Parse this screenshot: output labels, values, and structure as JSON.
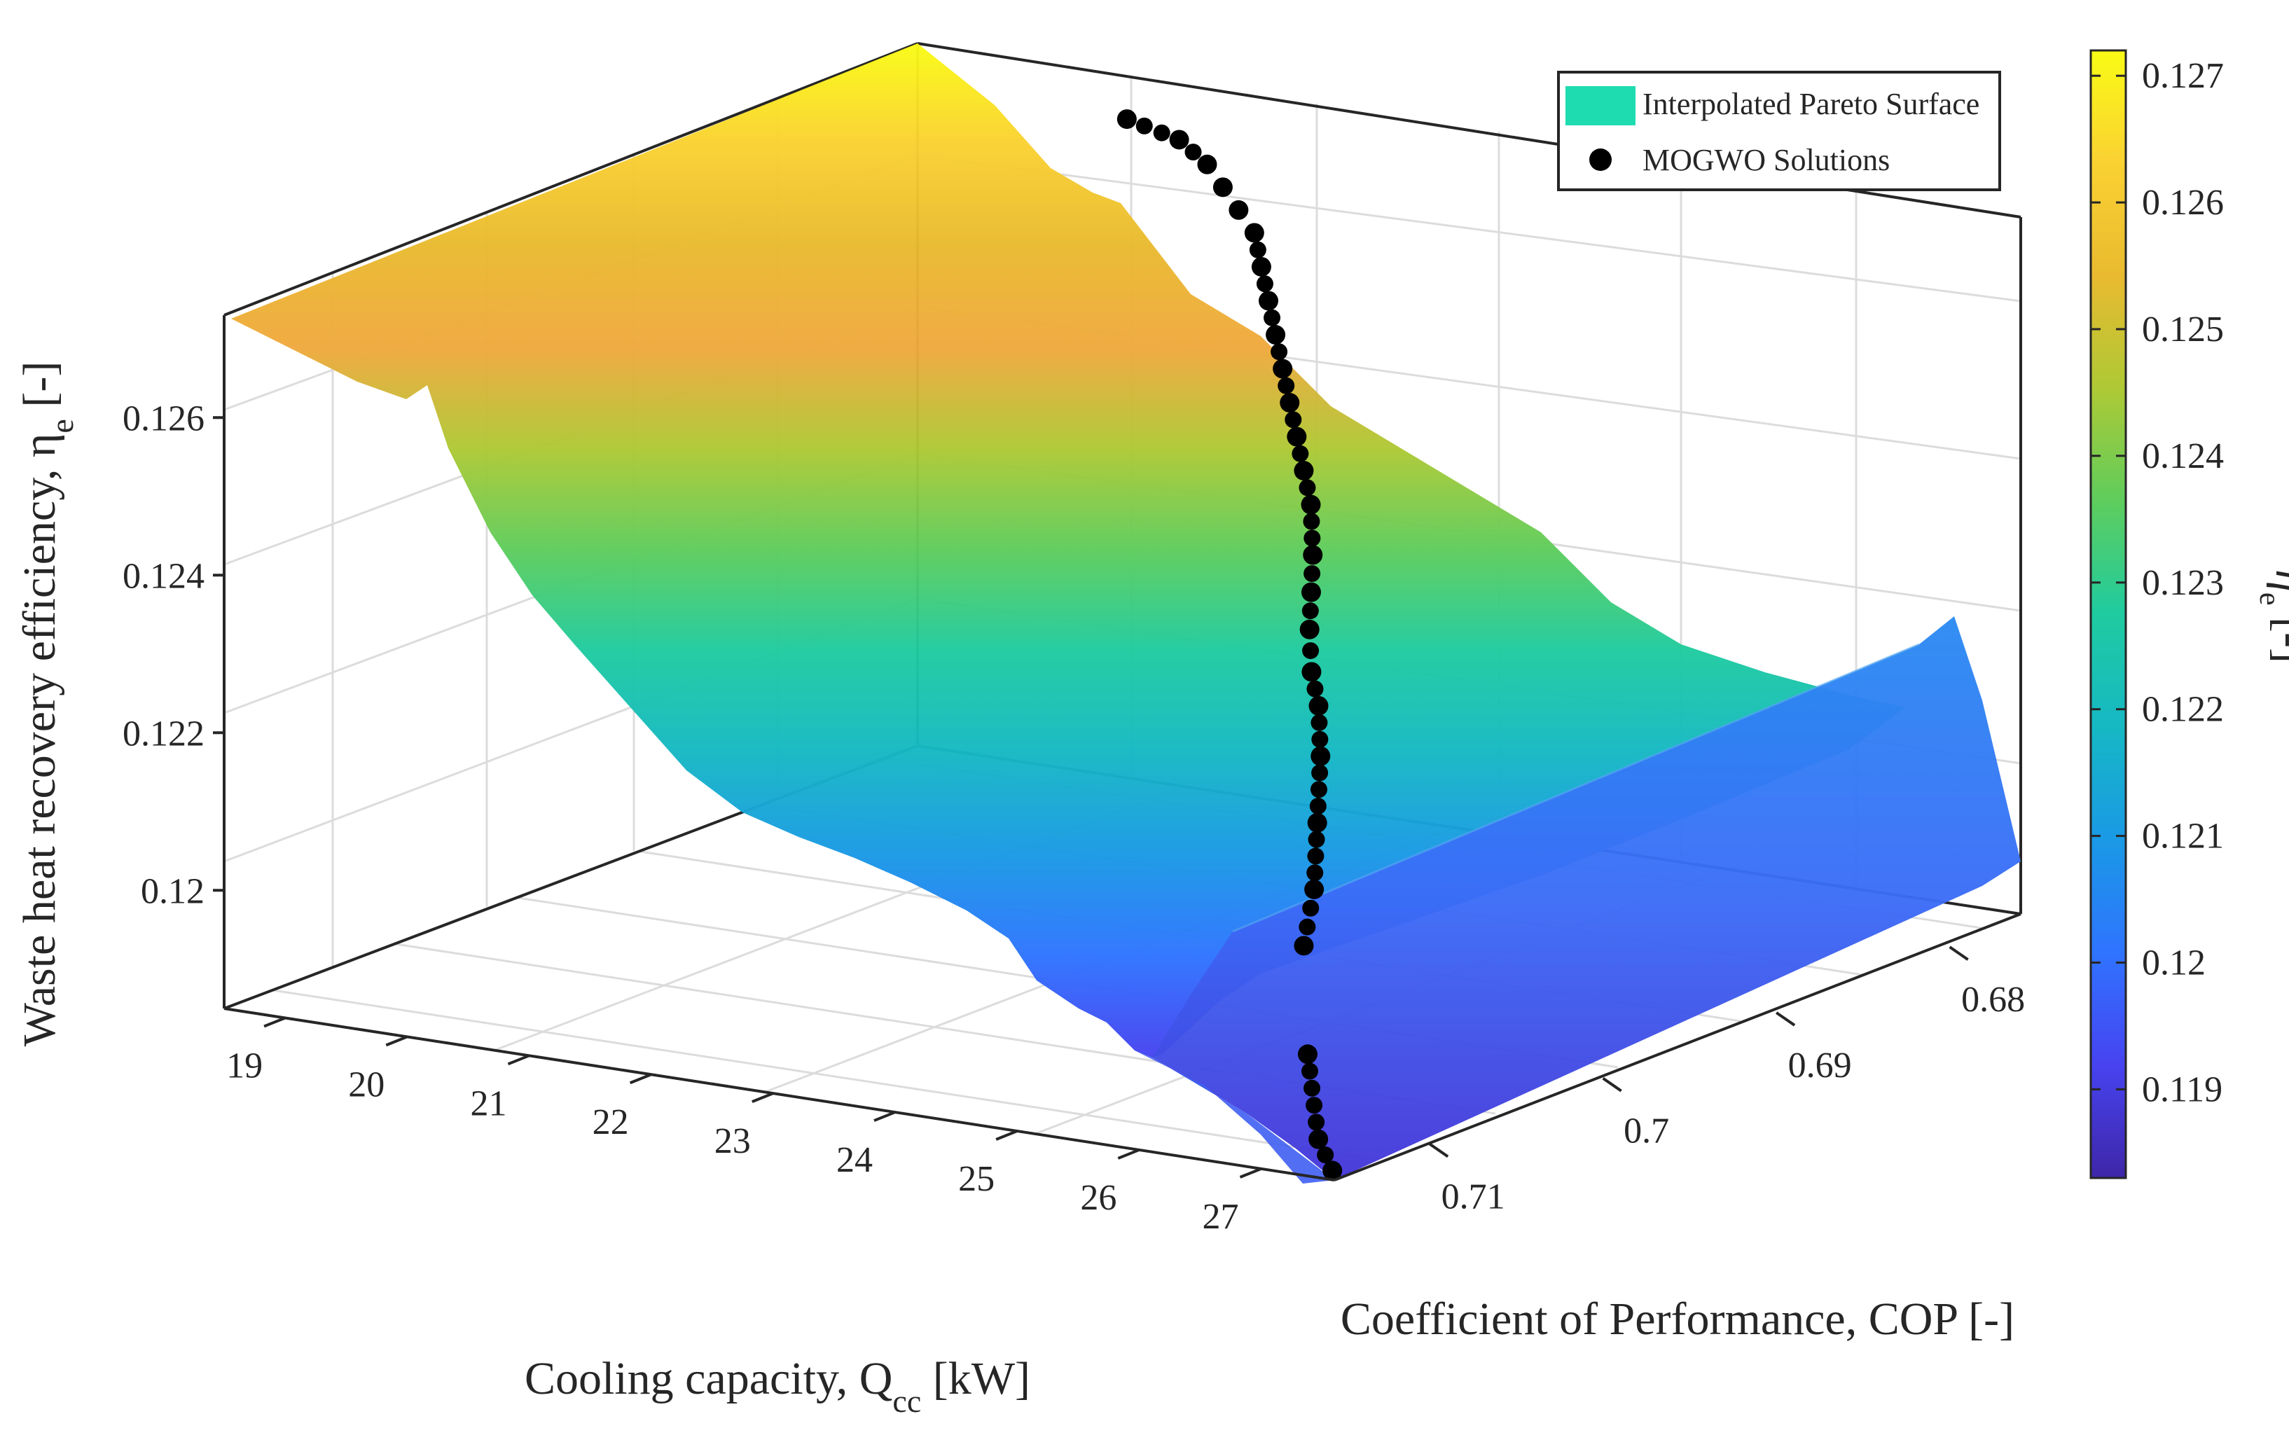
{
  "chart_data": {
    "type": "surface3d",
    "title": "",
    "xlabel": "Cooling capacity, Q",
    "xlabel_sub": "cc",
    "xlabel_unit": " [kW]",
    "ylabel": "Coefficient of Performance, COP [-]",
    "zlabel": "Waste heat recovery efficiency, η",
    "zlabel_sub": "e",
    "zlabel_unit": " [-]",
    "x_ticks": [
      "19",
      "20",
      "21",
      "22",
      "23",
      "24",
      "25",
      "26",
      "27"
    ],
    "y_ticks": [
      "0.71",
      "0.7",
      "0.69",
      "0.68"
    ],
    "z_ticks": [
      "0.12",
      "0.122",
      "0.124",
      "0.126"
    ],
    "x_range": [
      18.5,
      27.6
    ],
    "y_range": [
      0.7155,
      0.6755
    ],
    "z_range": [
      0.1185,
      0.1273
    ],
    "grid": true,
    "legend": {
      "location": "top-right",
      "entries": [
        {
          "label": "Interpolated Pareto Surface",
          "marker": "patch",
          "color": "#1edcb0"
        },
        {
          "label": "MOGWO Solutions",
          "marker": "dot",
          "color": "#000000"
        }
      ]
    },
    "colorbar": {
      "label": "η",
      "label_sub": "e",
      "label_unit": " [-]",
      "ticks": [
        "0.119",
        "0.12",
        "0.121",
        "0.122",
        "0.123",
        "0.124",
        "0.125",
        "0.126",
        "0.127"
      ],
      "range": [
        0.1183,
        0.1272
      ],
      "colormap": [
        "#3e26a8",
        "#4743f0",
        "#2f74ff",
        "#1a99e5",
        "#16b8c4",
        "#1fcba0",
        "#5ecd5d",
        "#aec935",
        "#e9ba30",
        "#fad132",
        "#f9fb15"
      ]
    },
    "series": [
      {
        "name": "MOGWO Solutions",
        "type": "scatter3d",
        "points": [
          {
            "x": 27.2,
            "y": 0.7128,
            "z": 0.1183
          },
          {
            "x": 27.0,
            "y": 0.7122,
            "z": 0.1186
          },
          {
            "x": 26.6,
            "y": 0.71,
            "z": 0.1194
          },
          {
            "x": 26.0,
            "y": 0.706,
            "z": 0.1203
          },
          {
            "x": 25.8,
            "y": 0.704,
            "z": 0.1208
          },
          {
            "x": 25.4,
            "y": 0.701,
            "z": 0.1213
          },
          {
            "x": 25.0,
            "y": 0.698,
            "z": 0.1218
          },
          {
            "x": 24.7,
            "y": 0.696,
            "z": 0.1222
          },
          {
            "x": 24.5,
            "y": 0.695,
            "z": 0.1225
          },
          {
            "x": 24.2,
            "y": 0.693,
            "z": 0.1228
          },
          {
            "x": 24.0,
            "y": 0.6915,
            "z": 0.1231
          },
          {
            "x": 23.8,
            "y": 0.69,
            "z": 0.1234
          },
          {
            "x": 23.5,
            "y": 0.688,
            "z": 0.1238
          },
          {
            "x": 23.3,
            "y": 0.687,
            "z": 0.1241
          },
          {
            "x": 23.1,
            "y": 0.686,
            "z": 0.1244
          },
          {
            "x": 22.9,
            "y": 0.685,
            "z": 0.1247
          },
          {
            "x": 22.7,
            "y": 0.684,
            "z": 0.125
          },
          {
            "x": 22.5,
            "y": 0.683,
            "z": 0.1253
          },
          {
            "x": 22.3,
            "y": 0.682,
            "z": 0.1256
          },
          {
            "x": 22.1,
            "y": 0.681,
            "z": 0.1259
          },
          {
            "x": 21.9,
            "y": 0.68,
            "z": 0.1262
          },
          {
            "x": 21.7,
            "y": 0.6795,
            "z": 0.1264
          },
          {
            "x": 21.5,
            "y": 0.679,
            "z": 0.1266
          },
          {
            "x": 21.3,
            "y": 0.6785,
            "z": 0.1268
          },
          {
            "x": 21.0,
            "y": 0.678,
            "z": 0.127
          },
          {
            "x": 20.5,
            "y": 0.6775,
            "z": 0.1271
          }
        ]
      }
    ]
  }
}
